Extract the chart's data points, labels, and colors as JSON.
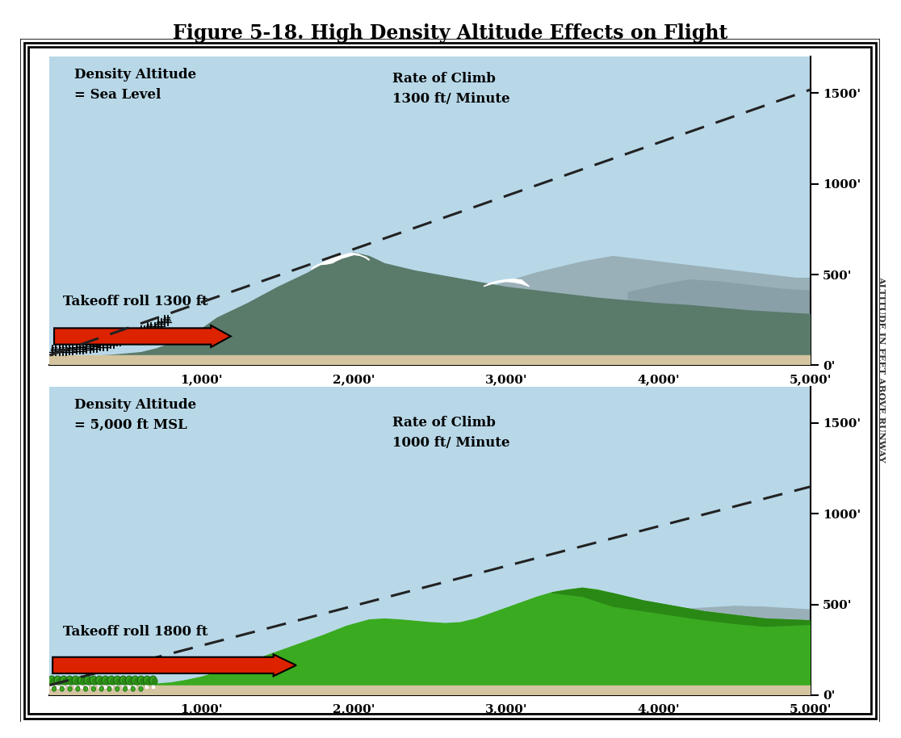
{
  "title": "Figure 5-18. High Density Altitude Effects on Flight",
  "title_fontsize": 17,
  "outer_bg": "#ffffff",
  "ground_color": "#d4c4a0",
  "sky_color": "#b8d8e8",
  "panel1": {
    "density_altitude_line1": "Density Altitude",
    "density_altitude_line2": "= Sea Level",
    "rate_of_climb_line1": "Rate of Climb",
    "rate_of_climb_line2": "1300 ft/ Minute",
    "takeoff_text": "Takeoff roll 1300 ft",
    "x_ticks": [
      "1,000'",
      "2,000'",
      "3,000'",
      "4,000'",
      "5,000'"
    ],
    "y_ticks": [
      "0'",
      "500'",
      "1000'",
      "1500'"
    ],
    "mountain_color": "#5a7a6a",
    "grey_hill_color": "#9ab0b8",
    "snow_color": "#ffffff",
    "arrow_color": "#dd2200",
    "tree_color": "#111111"
  },
  "panel2": {
    "density_altitude_line1": "Density Altitude",
    "density_altitude_line2": "= 5,000 ft MSL",
    "rate_of_climb_line1": "Rate of Climb",
    "rate_of_climb_line2": "1000 ft/ Minute",
    "takeoff_text": "Takeoff roll 1800 ft",
    "x_ticks": [
      "1,000'",
      "2,000'",
      "3,000'",
      "4,000'",
      "5,000'"
    ],
    "y_ticks": [
      "0'",
      "500'",
      "1000'",
      "1500'"
    ],
    "hill_color": "#3aaa20",
    "hill_dark_color": "#2a8815",
    "grey_color": "#9ab0b8",
    "bush_color": "#3aaa20",
    "bush_dark": "#2a8815",
    "arrow_color": "#dd2200"
  },
  "ylabel": "ALTITUDE IN FEET ABOVE RUNWAY",
  "ylabel_fontsize": 8
}
